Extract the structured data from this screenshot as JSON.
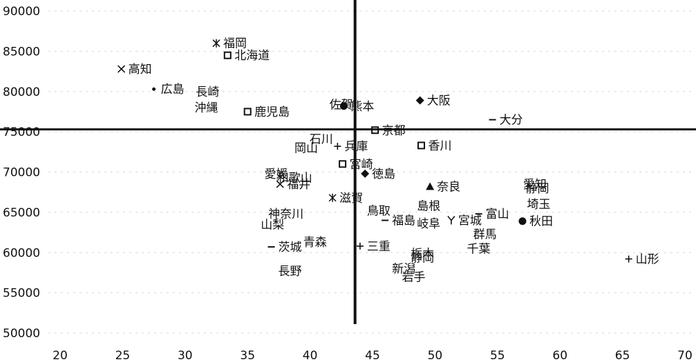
{
  "chart_data": {
    "type": "scatter",
    "xlim": [
      20,
      70
    ],
    "ylim": [
      50000,
      90000
    ],
    "x_ticks": [
      20,
      25,
      30,
      35,
      40,
      45,
      50,
      55,
      60,
      65,
      70
    ],
    "y_ticks": [
      50000,
      55000,
      60000,
      65000,
      70000,
      75000,
      80000,
      85000,
      90000
    ],
    "grid": true,
    "reference_lines": {
      "x": 43.6,
      "y": 75300
    },
    "points": [
      {
        "label": "福岡",
        "x": 32.5,
        "y": 86000,
        "marker": "asterisk"
      },
      {
        "label": "北海道",
        "x": 33.4,
        "y": 84500,
        "marker": "square"
      },
      {
        "label": "高知",
        "x": 24.9,
        "y": 82800,
        "marker": "x"
      },
      {
        "label": "広島",
        "x": 27.5,
        "y": 80300,
        "marker": "dot"
      },
      {
        "label": "長崎",
        "x": 30.3,
        "y": 80000,
        "marker": "none"
      },
      {
        "label": "沖縄",
        "x": 30.2,
        "y": 78000,
        "marker": "none"
      },
      {
        "label": "鹿児島",
        "x": 35.0,
        "y": 77500,
        "marker": "square"
      },
      {
        "label": "佐賀",
        "x": 41.0,
        "y": 78400,
        "marker": "none"
      },
      {
        "label": "熊本",
        "x": 42.7,
        "y": 78200,
        "marker": "circle"
      },
      {
        "label": "大阪",
        "x": 48.8,
        "y": 78900,
        "marker": "diamond"
      },
      {
        "label": "大分",
        "x": 54.6,
        "y": 76500,
        "marker": "dash"
      },
      {
        "label": "石川",
        "x": 39.4,
        "y": 74100,
        "marker": "none"
      },
      {
        "label": "京都",
        "x": 45.2,
        "y": 75200,
        "marker": "square"
      },
      {
        "label": "香川",
        "x": 48.9,
        "y": 73300,
        "marker": "square"
      },
      {
        "label": "岡山",
        "x": 38.2,
        "y": 73000,
        "marker": "none"
      },
      {
        "label": "兵庫",
        "x": 42.2,
        "y": 73200,
        "marker": "plus"
      },
      {
        "label": "徳島",
        "x": 44.4,
        "y": 69800,
        "marker": "diamond"
      },
      {
        "label": "愛媛",
        "x": 35.8,
        "y": 69800,
        "marker": "none"
      },
      {
        "label": "和歌山",
        "x": 36.8,
        "y": 69300,
        "marker": "none"
      },
      {
        "label": "福井",
        "x": 37.6,
        "y": 68500,
        "marker": "x"
      },
      {
        "label": "宮崎",
        "x": 42.6,
        "y": 71000,
        "marker": "square"
      },
      {
        "label": "奈良",
        "x": 49.6,
        "y": 68200,
        "marker": "triangle"
      },
      {
        "label": "静岡",
        "x": 56.7,
        "y": 68000,
        "marker": "none"
      },
      {
        "label": "愛知",
        "x": 56.5,
        "y": 68500,
        "marker": "none"
      },
      {
        "label": "埼玉",
        "x": 56.8,
        "y": 66000,
        "marker": "none"
      },
      {
        "label": "滋賀",
        "x": 41.8,
        "y": 66800,
        "marker": "asterisk"
      },
      {
        "label": "鳥取",
        "x": 44.0,
        "y": 65200,
        "marker": "none"
      },
      {
        "label": "島根",
        "x": 48.0,
        "y": 65800,
        "marker": "none"
      },
      {
        "label": "神奈川",
        "x": 36.1,
        "y": 64800,
        "marker": "none"
      },
      {
        "label": "山梨",
        "x": 35.5,
        "y": 63500,
        "marker": "none"
      },
      {
        "label": "福島",
        "x": 46.0,
        "y": 64000,
        "marker": "dash"
      },
      {
        "label": "岐阜",
        "x": 48.0,
        "y": 63600,
        "marker": "none"
      },
      {
        "label": "宮城",
        "x": 51.3,
        "y": 64000,
        "marker": "y"
      },
      {
        "label": "富山",
        "x": 53.5,
        "y": 64800,
        "marker": "dash"
      },
      {
        "label": "秋田",
        "x": 57.0,
        "y": 63900,
        "marker": "circle"
      },
      {
        "label": "群馬",
        "x": 52.5,
        "y": 62300,
        "marker": "none"
      },
      {
        "label": "茨城",
        "x": 36.9,
        "y": 60700,
        "marker": "dash"
      },
      {
        "label": "青森",
        "x": 38.9,
        "y": 61300,
        "marker": "none"
      },
      {
        "label": "三重",
        "x": 44.0,
        "y": 60800,
        "marker": "plus"
      },
      {
        "label": "栃木",
        "x": 47.5,
        "y": 59900,
        "marker": "none"
      },
      {
        "label": "静岡",
        "x": 47.5,
        "y": 59400,
        "marker": "none"
      },
      {
        "label": "千葉",
        "x": 52.0,
        "y": 60500,
        "marker": "none"
      },
      {
        "label": "新潟",
        "x": 46.0,
        "y": 58000,
        "marker": "none"
      },
      {
        "label": "岩手",
        "x": 46.8,
        "y": 57000,
        "marker": "none"
      },
      {
        "label": "長野",
        "x": 36.9,
        "y": 57700,
        "marker": "none"
      },
      {
        "label": "山形",
        "x": 65.5,
        "y": 59200,
        "marker": "plus"
      }
    ]
  },
  "colors": {
    "axis": "#111111",
    "grid": "#d6d6d6",
    "marker": "#111111"
  }
}
